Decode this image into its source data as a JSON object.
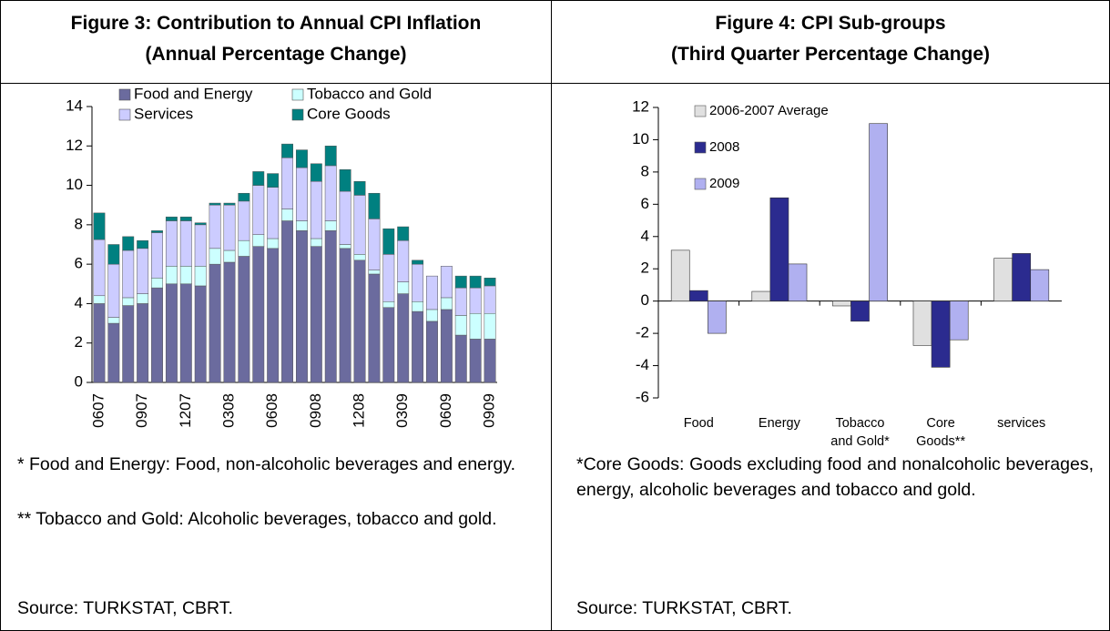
{
  "chart_data": [
    {
      "type": "bar",
      "stacked": true,
      "title": "Figure 3: Contribution to Annual CPI Inflation",
      "subtitle": "(Annual Percentage Change)",
      "categories": [
        "0607",
        null,
        null,
        "0907",
        null,
        null,
        "1207",
        null,
        null,
        "0308",
        null,
        null,
        "0608",
        null,
        null,
        "0908",
        null,
        null,
        "1208",
        null,
        null,
        "0309",
        null,
        null,
        "0609",
        null,
        null,
        "0909"
      ],
      "series": [
        {
          "name": "Food and Energy",
          "color": "#6b6b9e",
          "values": [
            4.0,
            3.0,
            3.9,
            4.0,
            4.8,
            5.0,
            5.0,
            4.9,
            6.0,
            6.1,
            6.4,
            6.9,
            6.8,
            8.2,
            7.7,
            6.9,
            7.7,
            6.8,
            6.2,
            5.5,
            3.8,
            4.5,
            3.6,
            3.1,
            3.7,
            2.4,
            2.2,
            2.2
          ]
        },
        {
          "name": "Tobacco and Gold",
          "color": "#ccffff",
          "values": [
            0.4,
            0.3,
            0.4,
            0.5,
            0.5,
            0.9,
            0.9,
            1.0,
            0.8,
            0.6,
            0.8,
            0.6,
            0.5,
            0.6,
            0.5,
            0.4,
            0.5,
            0.2,
            0.3,
            0.2,
            0.3,
            0.6,
            0.5,
            0.6,
            0.6,
            1.0,
            1.3,
            1.3
          ]
        },
        {
          "name": "Services",
          "color": "#ccccff",
          "values": [
            2.85,
            2.7,
            2.4,
            2.3,
            2.3,
            2.3,
            2.3,
            2.1,
            2.2,
            2.3,
            2.0,
            2.5,
            2.6,
            2.6,
            2.7,
            2.9,
            2.8,
            2.7,
            3.0,
            2.6,
            2.4,
            2.1,
            1.9,
            1.7,
            1.6,
            1.4,
            1.3,
            1.4
          ]
        },
        {
          "name": "Core Goods",
          "color": "#008080",
          "values": [
            1.35,
            1.0,
            0.7,
            0.4,
            0.1,
            0.2,
            0.2,
            0.1,
            0.1,
            0.1,
            0.4,
            0.7,
            0.7,
            0.7,
            0.9,
            0.9,
            1.0,
            1.1,
            0.7,
            1.3,
            1.3,
            0.7,
            0.2,
            0.0,
            0.0,
            0.6,
            0.6,
            0.4
          ]
        }
      ],
      "ylim": [
        0,
        14
      ],
      "yticks": [
        0,
        2,
        4,
        6,
        8,
        10,
        12,
        14
      ],
      "notes": [
        "* Food and Energy: Food, non-alcoholic beverages and energy.",
        "** Tobacco and Gold: Alcoholic beverages, tobacco and gold."
      ],
      "source": "Source: TURKSTAT, CBRT."
    },
    {
      "type": "bar",
      "stacked": false,
      "title": "Figure 4: CPI Sub-groups",
      "subtitle": "(Third Quarter Percentage Change)",
      "categories": [
        "Food",
        "Energy",
        "Tobacco and Gold*",
        "Core Goods**",
        "services"
      ],
      "series": [
        {
          "name": "2006-2007 Average",
          "color": "#e0e0e0",
          "values": [
            3.15,
            0.6,
            -0.3,
            -2.75,
            2.65
          ]
        },
        {
          "name": "2008",
          "color": "#2b2b8f",
          "values": [
            0.65,
            6.4,
            -1.25,
            -4.1,
            2.95
          ]
        },
        {
          "name": "2009",
          "color": "#b0b0f0",
          "values": [
            -2.0,
            2.3,
            11.0,
            -2.4,
            1.95
          ]
        }
      ],
      "ylim": [
        -6,
        12
      ],
      "yticks": [
        -6,
        -4,
        -2,
        0,
        2,
        4,
        6,
        8,
        10,
        12
      ],
      "notes": [
        "*Core Goods: Goods excluding food and nonalcoholic beverages, energy, alcoholic beverages and tobacco and gold."
      ],
      "source": "Source: TURKSTAT, CBRT."
    }
  ]
}
